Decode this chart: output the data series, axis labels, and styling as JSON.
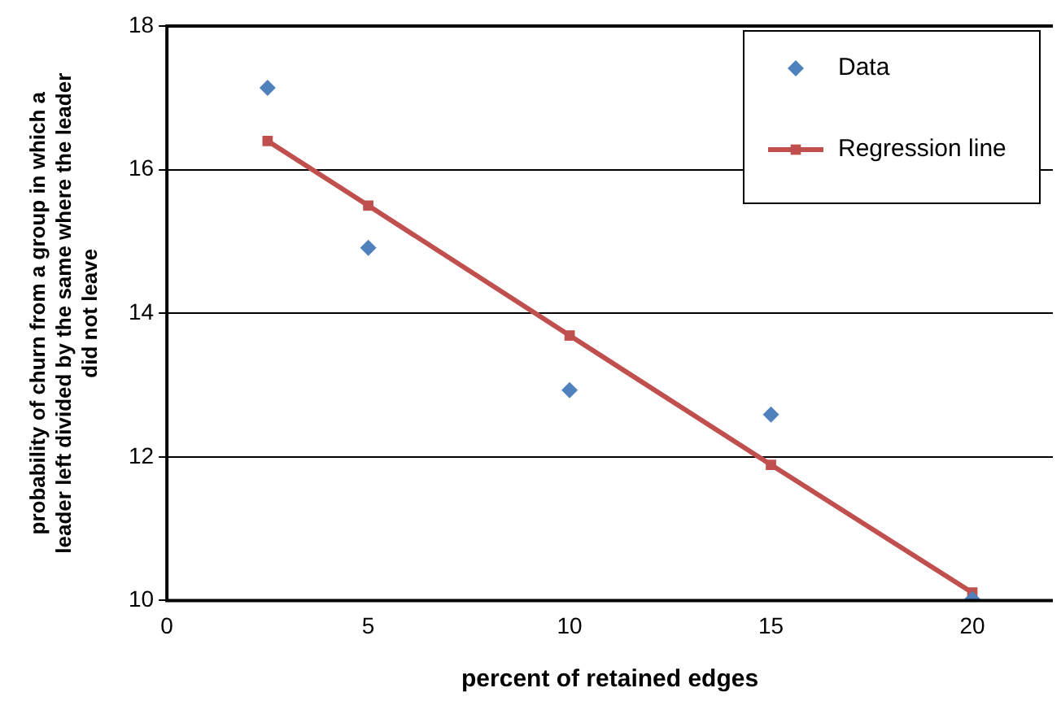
{
  "chart_data": {
    "type": "scatter",
    "xlabel": "percent of retained edges",
    "ylabel": "probability of churn from a group in which a leader left divided by the same where the leader did not leave",
    "x": [
      2.5,
      5,
      10,
      15,
      20
    ],
    "series": [
      {
        "name": "Data",
        "color": "#4f81bd",
        "marker": "diamond",
        "values": [
          17.14,
          14.91,
          12.93,
          12.59,
          10.02
        ]
      },
      {
        "name": "Regression line",
        "type": "line",
        "color": "#c0504d",
        "marker": "square",
        "values": [
          16.4,
          15.5,
          13.69,
          11.89,
          10.11
        ]
      }
    ],
    "xlim": [
      0,
      22
    ],
    "xticks": [
      0,
      5,
      10,
      15,
      20
    ],
    "ylim": [
      10,
      18
    ],
    "yticks": [
      10,
      12,
      14,
      16,
      18
    ],
    "grid": "y",
    "legend": "top right"
  }
}
